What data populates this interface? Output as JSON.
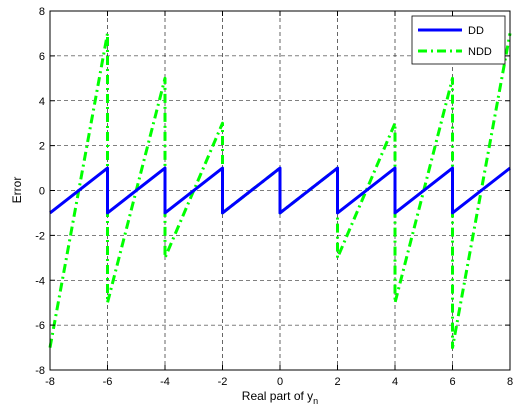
{
  "chart_data": {
    "type": "line",
    "title": "",
    "xlabel": "Real part of y",
    "xlabel_subscript": "n",
    "ylabel": "Error",
    "xlim": [
      -8,
      8
    ],
    "ylim": [
      -8,
      8
    ],
    "xticks": [
      -8,
      -6,
      -4,
      -2,
      0,
      2,
      4,
      6,
      8
    ],
    "yticks": [
      -8,
      -6,
      -4,
      -2,
      0,
      2,
      4,
      6,
      8
    ],
    "grid": true,
    "legend_position": "top-right",
    "series": [
      {
        "name": "DD",
        "color": "#0000ff",
        "style": "solid",
        "x": [
          -8,
          -6,
          -6,
          -4,
          -4,
          -2,
          -2,
          0,
          0,
          2,
          2,
          4,
          4,
          6,
          6,
          8
        ],
        "y": [
          -1,
          1,
          -1,
          1,
          -1,
          1,
          -1,
          1,
          -1,
          1,
          -1,
          1,
          -1,
          1,
          -1,
          1
        ]
      },
      {
        "name": "NDD",
        "color": "#00ff00",
        "style": "dashdot",
        "x": [
          -8,
          -6,
          -6,
          -4,
          -4,
          -2,
          -2,
          0,
          0,
          2,
          2,
          4,
          4,
          6,
          6,
          8
        ],
        "y": [
          -7,
          7,
          -5,
          5,
          -3,
          3,
          -1,
          1,
          -1,
          1,
          -3,
          3,
          -5,
          5,
          -7,
          7
        ]
      }
    ]
  }
}
